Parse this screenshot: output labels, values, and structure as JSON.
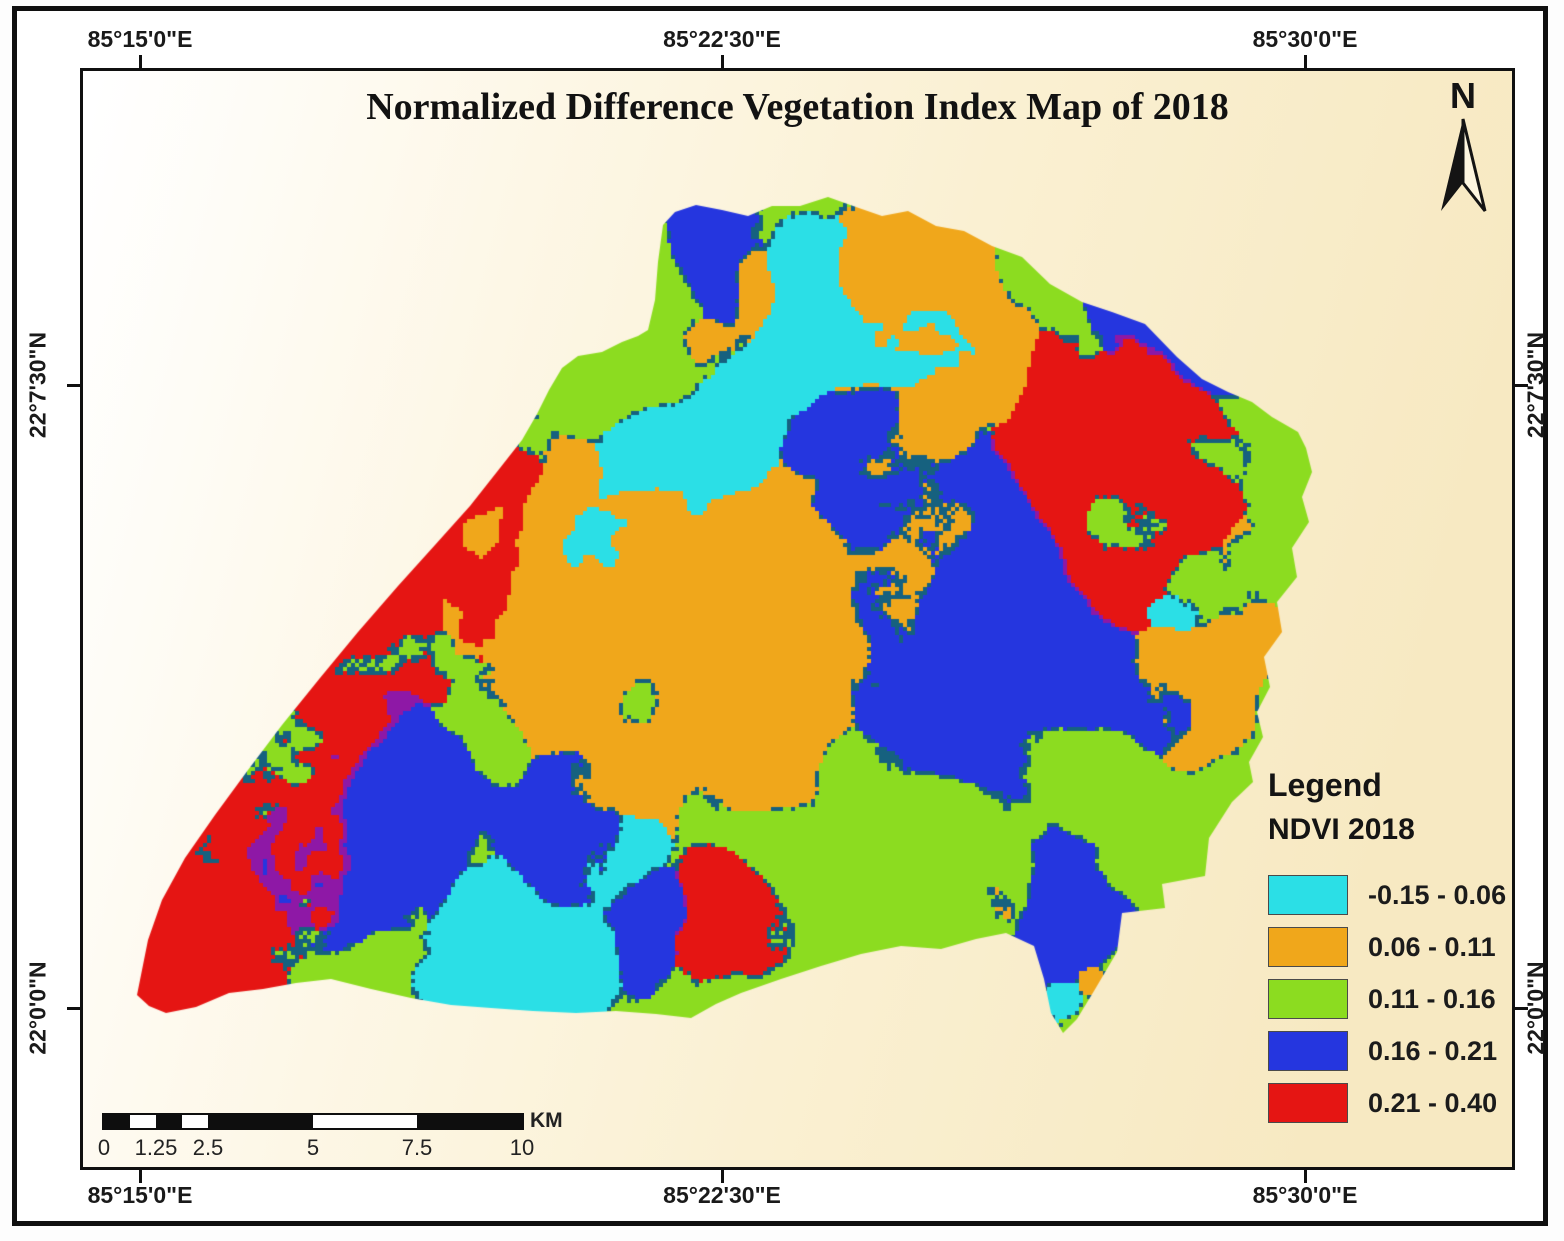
{
  "title": "Normalized Difference Vegetation Index Map of 2018",
  "north_arrow": {
    "label": "N"
  },
  "graticule": {
    "top": [
      {
        "label": "85°15'0\"E"
      },
      {
        "label": "85°22'30\"E"
      },
      {
        "label": "85°30'0\"E"
      }
    ],
    "bottom": [
      {
        "label": "85°15'0\"E"
      },
      {
        "label": "85°22'30\"E"
      },
      {
        "label": "85°30'0\"E"
      }
    ],
    "left": [
      {
        "label": "22°7'30\"N"
      },
      {
        "label": "22°0'0\"N"
      }
    ],
    "right": [
      {
        "label": "22°7'30\"N"
      },
      {
        "label": "22°0'0\"N"
      }
    ]
  },
  "legend": {
    "title": "Legend",
    "subtitle": "NDVI 2018",
    "items": [
      {
        "label": "-0.15 - 0.06",
        "color": "#2BDFE6"
      },
      {
        "label": "0.06 - 0.11",
        "color": "#F0A71B"
      },
      {
        "label": "0.11 - 0.16",
        "color": "#8CDC20"
      },
      {
        "label": "0.16 - 0.21",
        "color": "#2536DF"
      },
      {
        "label": "0.21 - 0.40",
        "color": "#E51513"
      }
    ]
  },
  "scale_bar": {
    "ticks": [
      "0",
      "1.25",
      "2.5",
      "5",
      "7.5",
      "10"
    ],
    "unit": "KM"
  },
  "map": {
    "palette": {
      "cyan": "#2BDFE6",
      "orange": "#F0A71B",
      "green": "#8CDC20",
      "blue": "#2536DF",
      "red": "#E51513",
      "dark_speckle": "#16617F",
      "purple_speckle": "#8E18A6"
    },
    "background_gradient": [
      "#FFFFFF",
      "#FDF7E6",
      "#F7E9C2"
    ]
  }
}
